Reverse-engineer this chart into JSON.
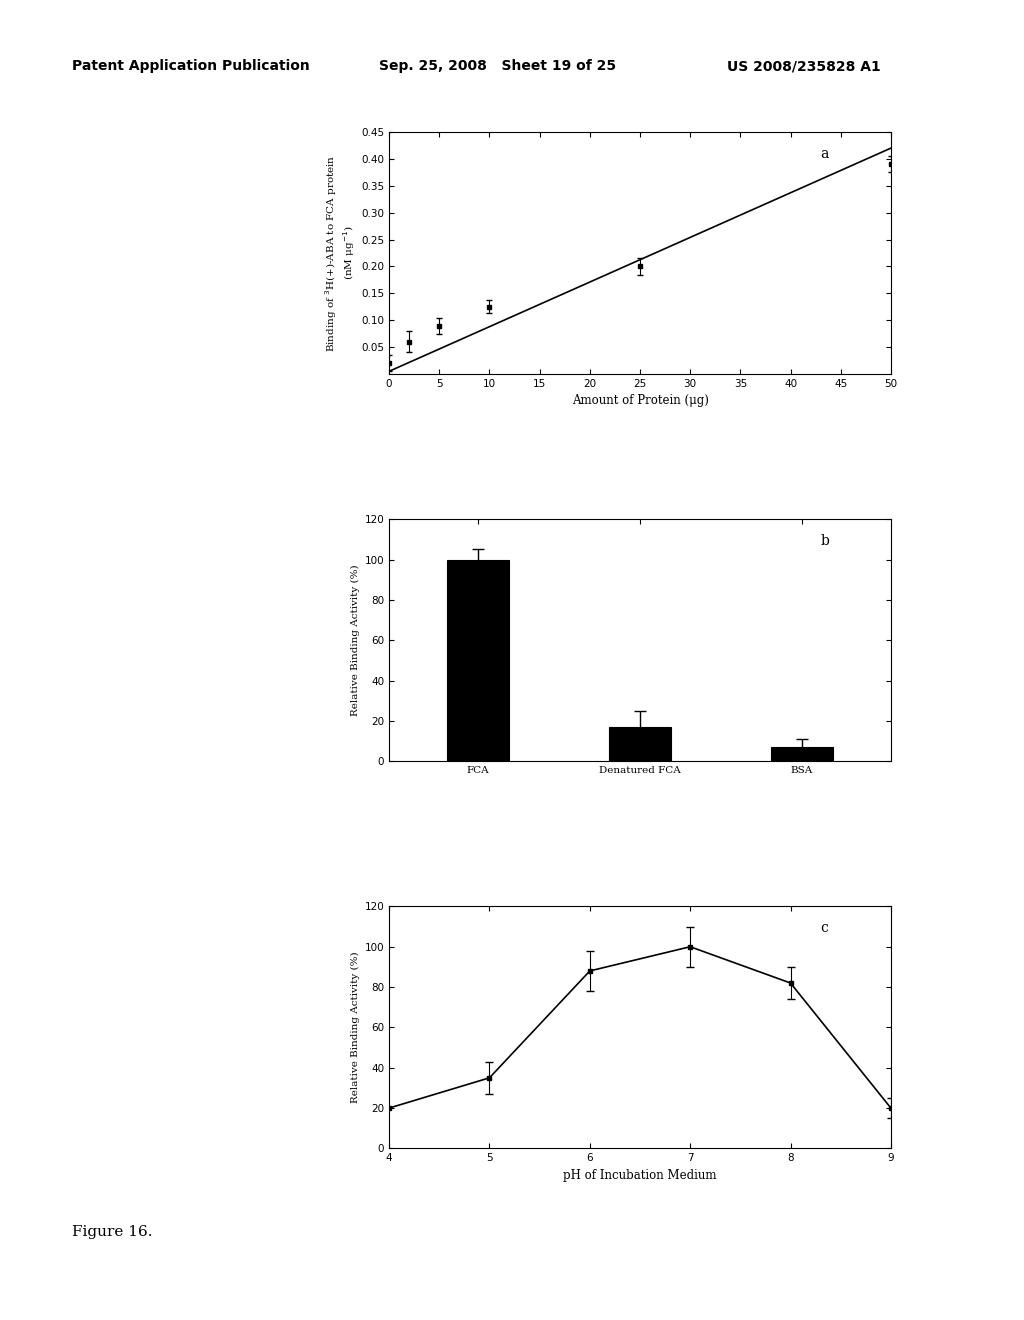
{
  "panel_a": {
    "label": "a",
    "x_data": [
      0,
      2,
      5,
      10,
      25,
      50
    ],
    "y_data": [
      0.02,
      0.06,
      0.09,
      0.125,
      0.2,
      0.39
    ],
    "y_err": [
      0.015,
      0.02,
      0.015,
      0.012,
      0.015,
      0.015
    ],
    "line_x": [
      0,
      50
    ],
    "line_y": [
      0.005,
      0.42
    ],
    "xlabel": "Amount of Protein (μg)",
    "ylabel": "Binding of $^3$H(+)-ABA to FCA protein\n(nM μg$^{-1}$)",
    "xlim": [
      0,
      50
    ],
    "ylim": [
      0,
      0.45
    ],
    "xticks": [
      0,
      5,
      10,
      15,
      20,
      25,
      30,
      35,
      40,
      45,
      50
    ],
    "yticks": [
      0.05,
      0.1,
      0.15,
      0.2,
      0.25,
      0.3,
      0.35,
      0.4,
      0.45
    ]
  },
  "panel_b": {
    "label": "b",
    "categories": [
      "FCA",
      "Denatured FCA",
      "BSA"
    ],
    "values": [
      100,
      17,
      7
    ],
    "errors": [
      5,
      8,
      4
    ],
    "ylabel": "Relative Binding Activity (%)",
    "ylim": [
      0,
      120
    ],
    "yticks": [
      0,
      20,
      40,
      60,
      80,
      100,
      120
    ]
  },
  "panel_c": {
    "label": "c",
    "x_line": [
      4,
      5,
      6,
      7,
      8,
      9
    ],
    "y_line": [
      20,
      35,
      88,
      100,
      82,
      20
    ],
    "err_x": [
      5,
      6,
      7,
      8,
      9
    ],
    "err_y": [
      35,
      88,
      100,
      82,
      20
    ],
    "err_vals": [
      8,
      10,
      10,
      8,
      5
    ],
    "xlabel": "pH of Incubation Medium",
    "ylabel": "Relative Binding Activity (%)",
    "xlim": [
      4,
      9
    ],
    "ylim": [
      0,
      120
    ],
    "xticks": [
      4,
      5,
      6,
      7,
      8,
      9
    ],
    "yticks": [
      0,
      20,
      40,
      60,
      80,
      100,
      120
    ]
  },
  "figure_label": "Figure 16.",
  "header_left": "Patent Application Publication",
  "header_center": "Sep. 25, 2008   Sheet 19 of 25",
  "header_right": "US 2008/235828 A1",
  "bar_color": "#000000",
  "line_color": "#000000",
  "bg_color": "#ffffff"
}
